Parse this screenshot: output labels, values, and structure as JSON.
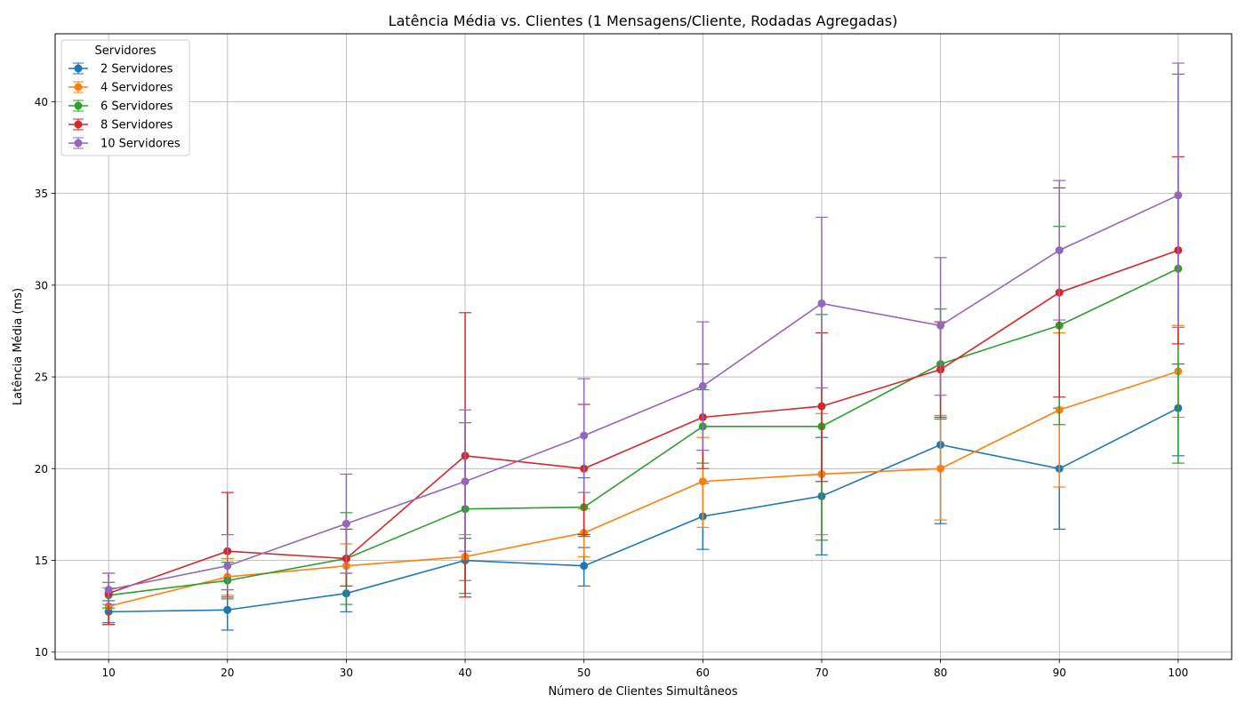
{
  "chart_data": {
    "type": "line",
    "title": "Latência Média vs. Clientes (1 Mensagens/Cliente, Rodadas Agregadas)",
    "xlabel": "Número de Clientes Simultâneos",
    "ylabel": "Latência Média (ms)",
    "x": [
      10,
      20,
      30,
      40,
      50,
      60,
      70,
      80,
      90,
      100
    ],
    "xticks": [
      "10",
      "20",
      "30",
      "40",
      "50",
      "60",
      "70",
      "80",
      "90",
      "100"
    ],
    "yticks": [
      "10",
      "15",
      "20",
      "25",
      "30",
      "35",
      "40"
    ],
    "xlim": [
      5.5,
      104.5
    ],
    "ylim": [
      9.6,
      43.7
    ],
    "grid": true,
    "legend_title": "Servidores",
    "legend_position": "upper-left",
    "series": [
      {
        "name": "2 Servidores",
        "color": "#1f77b4",
        "values": [
          12.2,
          12.3,
          13.2,
          15.0,
          14.7,
          17.4,
          18.5,
          21.3,
          20.0,
          23.3
        ],
        "err_low": [
          11.6,
          11.2,
          12.2,
          13.9,
          13.6,
          15.6,
          15.3,
          17.0,
          16.7,
          20.7
        ],
        "err_high": [
          12.8,
          13.4,
          14.3,
          16.2,
          15.7,
          19.2,
          21.7,
          22.8,
          23.3,
          25.7
        ]
      },
      {
        "name": "4 Servidores",
        "color": "#ff7f0e",
        "values": [
          12.5,
          14.1,
          14.7,
          15.2,
          16.5,
          19.3,
          19.7,
          20.0,
          23.2,
          25.3
        ],
        "err_low": [
          11.5,
          13.1,
          13.6,
          13.9,
          15.2,
          16.8,
          16.4,
          17.2,
          19.0,
          22.8
        ],
        "err_high": [
          13.5,
          15.1,
          15.9,
          16.4,
          17.8,
          21.7,
          23.0,
          22.9,
          27.4,
          27.8
        ]
      },
      {
        "name": "6 Servidores",
        "color": "#2ca02c",
        "values": [
          13.1,
          13.9,
          15.1,
          17.8,
          17.9,
          22.3,
          22.3,
          25.7,
          27.8,
          30.9
        ],
        "err_low": [
          12.4,
          12.9,
          12.6,
          13.2,
          16.3,
          20.3,
          16.1,
          22.7,
          22.4,
          20.3
        ],
        "err_high": [
          13.8,
          14.9,
          17.6,
          22.5,
          19.5,
          24.3,
          28.4,
          28.7,
          33.2,
          41.5
        ]
      },
      {
        "name": "8 Servidores",
        "color": "#d62728",
        "values": [
          13.2,
          15.5,
          15.1,
          20.7,
          20.0,
          22.8,
          23.4,
          25.4,
          29.6,
          31.9
        ],
        "err_low": [
          11.5,
          13.0,
          13.6,
          13.0,
          16.4,
          20.0,
          19.3,
          22.8,
          23.9,
          26.8
        ],
        "err_high": [
          14.3,
          18.7,
          16.7,
          28.5,
          23.5,
          25.7,
          27.4,
          28.0,
          35.3,
          37.0
        ]
      },
      {
        "name": "10 Servidores",
        "color": "#9467bd",
        "values": [
          13.4,
          14.7,
          17.0,
          19.3,
          21.8,
          24.5,
          29.0,
          27.8,
          31.9,
          34.9
        ],
        "err_low": [
          12.6,
          13.4,
          14.3,
          15.5,
          18.7,
          21.0,
          24.4,
          24.0,
          28.1,
          27.7
        ],
        "err_high": [
          14.3,
          16.4,
          19.7,
          23.2,
          24.9,
          28.0,
          33.7,
          31.5,
          35.7,
          42.1
        ]
      }
    ]
  }
}
